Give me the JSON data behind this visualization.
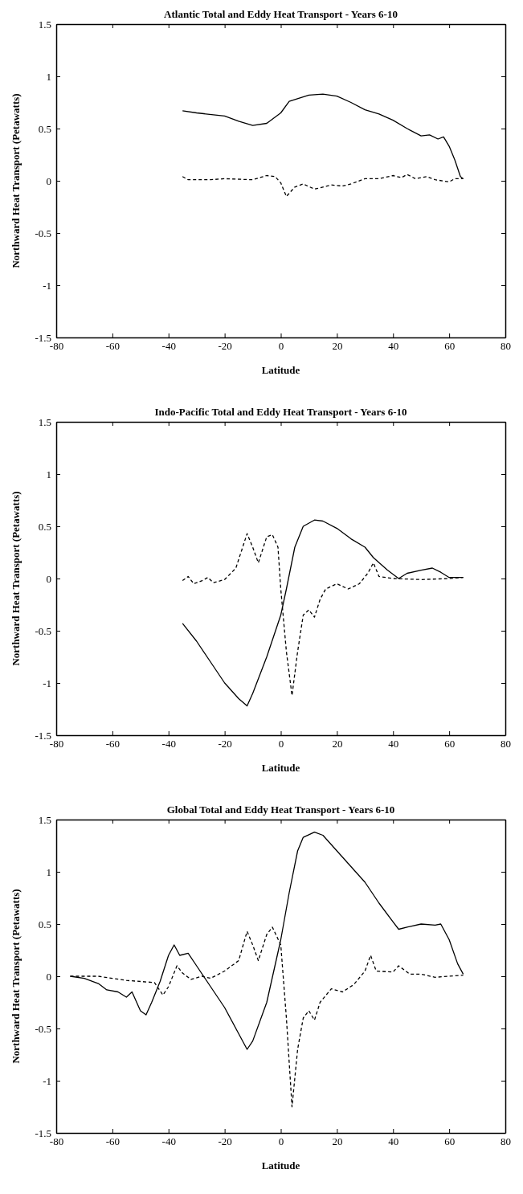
{
  "chart_data": [
    {
      "type": "line",
      "title": "Atlantic Total and Eddy Heat Transport - Years 6-10",
      "xlabel": "Latitude",
      "ylabel": "Northward Heat Transport (Petawatts)",
      "xlim": [
        -80,
        80
      ],
      "xticks": [
        -80,
        -60,
        -40,
        -20,
        0,
        20,
        40,
        60,
        80
      ],
      "ylim": [
        -1.5,
        1.5
      ],
      "yticks": [
        -1.5,
        -1,
        -0.5,
        0,
        0.5,
        1,
        1.5
      ],
      "grid": false,
      "marker": "none",
      "series": [
        {
          "color": "#000000",
          "line_style": "solid",
          "x": [
            -35,
            -30,
            -20,
            -15,
            -10,
            -5,
            0,
            3,
            10,
            15,
            20,
            25,
            30,
            35,
            40,
            45,
            50,
            53,
            56,
            58,
            60,
            62,
            64,
            65
          ],
          "values": [
            0.67,
            0.65,
            0.62,
            0.57,
            0.53,
            0.55,
            0.65,
            0.76,
            0.82,
            0.83,
            0.81,
            0.75,
            0.68,
            0.64,
            0.58,
            0.5,
            0.43,
            0.44,
            0.4,
            0.42,
            0.33,
            0.2,
            0.04,
            0.02
          ]
        },
        {
          "color": "#000000",
          "line_style": "dashed",
          "x": [
            -35,
            -33,
            -25,
            -20,
            -10,
            -5,
            -2,
            0,
            2,
            5,
            8,
            12,
            18,
            22,
            25,
            30,
            35,
            40,
            43,
            45,
            48,
            52,
            55,
            60,
            62,
            65
          ],
          "values": [
            0.04,
            0.01,
            0.01,
            0.02,
            0.01,
            0.05,
            0.04,
            -0.02,
            -0.15,
            -0.06,
            -0.03,
            -0.08,
            -0.04,
            -0.05,
            -0.03,
            0.02,
            0.02,
            0.05,
            0.03,
            0.06,
            0.02,
            0.04,
            0.01,
            -0.01,
            0.02,
            0.02
          ]
        }
      ]
    },
    {
      "type": "line",
      "title": "Indo-Pacific Total and Eddy Heat Transport - Years 6-10",
      "xlabel": "Latitude",
      "ylabel": "Northward Heat Transport (Petawatts)",
      "xlim": [
        -80,
        80
      ],
      "xticks": [
        -80,
        -60,
        -40,
        -20,
        0,
        20,
        40,
        60,
        80
      ],
      "ylim": [
        -1.5,
        1.5
      ],
      "yticks": [
        -1.5,
        -1,
        -0.5,
        0,
        0.5,
        1,
        1.5
      ],
      "grid": false,
      "marker": "none",
      "series": [
        {
          "color": "#000000",
          "line_style": "solid",
          "x": [
            -35,
            -30,
            -25,
            -20,
            -15,
            -12,
            -10,
            -5,
            0,
            2,
            5,
            8,
            12,
            15,
            20,
            25,
            30,
            33,
            38,
            42,
            45,
            50,
            54,
            57,
            60,
            65
          ],
          "values": [
            -0.43,
            -0.6,
            -0.8,
            -1.0,
            -1.15,
            -1.22,
            -1.1,
            -0.75,
            -0.35,
            -0.1,
            0.3,
            0.5,
            0.56,
            0.55,
            0.48,
            0.38,
            0.3,
            0.2,
            0.08,
            0.0,
            0.05,
            0.08,
            0.1,
            0.06,
            0.01,
            0.01
          ]
        },
        {
          "color": "#000000",
          "line_style": "dashed",
          "x": [
            -35,
            -33,
            -31,
            -28,
            -26,
            -24,
            -20,
            -16,
            -12,
            -10,
            -8,
            -5,
            -3,
            -1,
            0,
            2,
            4,
            6,
            8,
            10,
            12,
            14,
            16,
            20,
            24,
            28,
            31,
            33,
            35,
            40,
            50,
            60,
            65
          ],
          "values": [
            -0.02,
            0.02,
            -0.05,
            -0.02,
            0.01,
            -0.04,
            -0.01,
            0.1,
            0.43,
            0.3,
            0.15,
            0.4,
            0.42,
            0.3,
            -0.1,
            -0.7,
            -1.12,
            -0.7,
            -0.35,
            -0.3,
            -0.37,
            -0.2,
            -0.1,
            -0.05,
            -0.1,
            -0.05,
            0.05,
            0.15,
            0.02,
            0.0,
            -0.01,
            0.0,
            0.01
          ]
        }
      ]
    },
    {
      "type": "line",
      "title": "Global Total and Eddy Heat Transport - Years 6-10",
      "xlabel": "Latitude",
      "ylabel": "Northward Heat Transport (Petawatts)",
      "xlim": [
        -80,
        80
      ],
      "xticks": [
        -80,
        -60,
        -40,
        -20,
        0,
        20,
        40,
        60,
        80
      ],
      "ylim": [
        -1.5,
        1.5
      ],
      "yticks": [
        -1.5,
        -1,
        -0.5,
        0,
        0.5,
        1,
        1.5
      ],
      "grid": false,
      "marker": "none",
      "series": [
        {
          "color": "#000000",
          "line_style": "solid",
          "x": [
            -75,
            -70,
            -65,
            -62,
            -58,
            -55,
            -53,
            -50,
            -48,
            -46,
            -43,
            -40,
            -38,
            -36,
            -33,
            -30,
            -25,
            -20,
            -15,
            -12,
            -10,
            -5,
            0,
            3,
            6,
            8,
            12,
            15,
            20,
            25,
            30,
            35,
            40,
            42,
            45,
            50,
            55,
            57,
            60,
            63,
            65
          ],
          "values": [
            0,
            -0.02,
            -0.07,
            -0.13,
            -0.15,
            -0.2,
            -0.15,
            -0.33,
            -0.37,
            -0.25,
            -0.05,
            0.2,
            0.3,
            0.2,
            0.22,
            0.1,
            -0.1,
            -0.3,
            -0.55,
            -0.7,
            -0.62,
            -0.25,
            0.35,
            0.8,
            1.2,
            1.33,
            1.38,
            1.35,
            1.2,
            1.05,
            0.9,
            0.7,
            0.52,
            0.45,
            0.47,
            0.5,
            0.49,
            0.5,
            0.35,
            0.12,
            0.02
          ]
        },
        {
          "color": "#000000",
          "line_style": "dashed",
          "x": [
            -75,
            -65,
            -60,
            -55,
            -50,
            -45,
            -42,
            -40,
            -37,
            -35,
            -32,
            -28,
            -25,
            -20,
            -15,
            -12,
            -10,
            -8,
            -5,
            -3,
            0,
            2,
            4,
            6,
            8,
            10,
            12,
            14,
            18,
            22,
            26,
            30,
            32,
            34,
            40,
            42,
            46,
            50,
            55,
            60,
            65
          ],
          "values": [
            0,
            0,
            -0.02,
            -0.04,
            -0.05,
            -0.06,
            -0.18,
            -0.1,
            0.1,
            0.03,
            -0.03,
            0.0,
            -0.02,
            0.05,
            0.15,
            0.43,
            0.3,
            0.15,
            0.4,
            0.47,
            0.3,
            -0.4,
            -1.25,
            -0.7,
            -0.4,
            -0.33,
            -0.42,
            -0.25,
            -0.12,
            -0.15,
            -0.08,
            0.05,
            0.2,
            0.05,
            0.04,
            0.1,
            0.02,
            0.02,
            -0.01,
            0.0,
            0.01
          ]
        }
      ]
    }
  ]
}
